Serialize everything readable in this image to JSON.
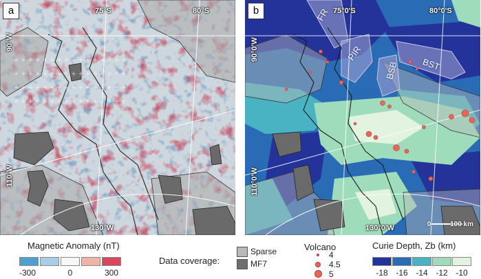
{
  "panel_a": {
    "label": "a",
    "grid_labels": {
      "lat_75": "75°S",
      "lat_80": "80°S",
      "lon_90": "90°W",
      "lon_110": "110°W",
      "lon_130": "130°W"
    }
  },
  "panel_b": {
    "label": "b",
    "grid_labels": {
      "lat_75": "75°0'S",
      "lat_80": "80°0'S",
      "lon_90": "90°0'W",
      "lon_110": "110°0'W",
      "lon_130": "130°0'W"
    },
    "regions": {
      "fr": "FR",
      "pir": "PIR",
      "bsb": "BSB",
      "bst": "BST"
    },
    "scale_bar": {
      "zero": "0",
      "distance": "100 km"
    }
  },
  "legend_magnetic": {
    "title": "Magnetic Anomaly (nT)",
    "colors": [
      "#4f9fcf",
      "#a9cde6",
      "#f7f7f7",
      "#f2b3a7",
      "#d9475f"
    ],
    "ticks": [
      "-300",
      "0",
      "300"
    ]
  },
  "legend_coverage": {
    "title": "Data coverage:",
    "items": [
      {
        "label": "Sparse",
        "color": "#b9b9b9"
      },
      {
        "label": "MF7",
        "color": "#6e6e6e"
      }
    ]
  },
  "legend_volcano": {
    "title": "Volcano",
    "items": [
      "4",
      "4.5",
      "5"
    ],
    "color": "#e8675a"
  },
  "legend_curie": {
    "title": "Curie Depth, Zb (km)",
    "colors": [
      "#23339a",
      "#2a6bb5",
      "#49b3c3",
      "#9fdcbc",
      "#e2f3e0"
    ],
    "ticks": [
      "-18",
      "-16",
      "-14",
      "-12",
      "-10"
    ]
  }
}
